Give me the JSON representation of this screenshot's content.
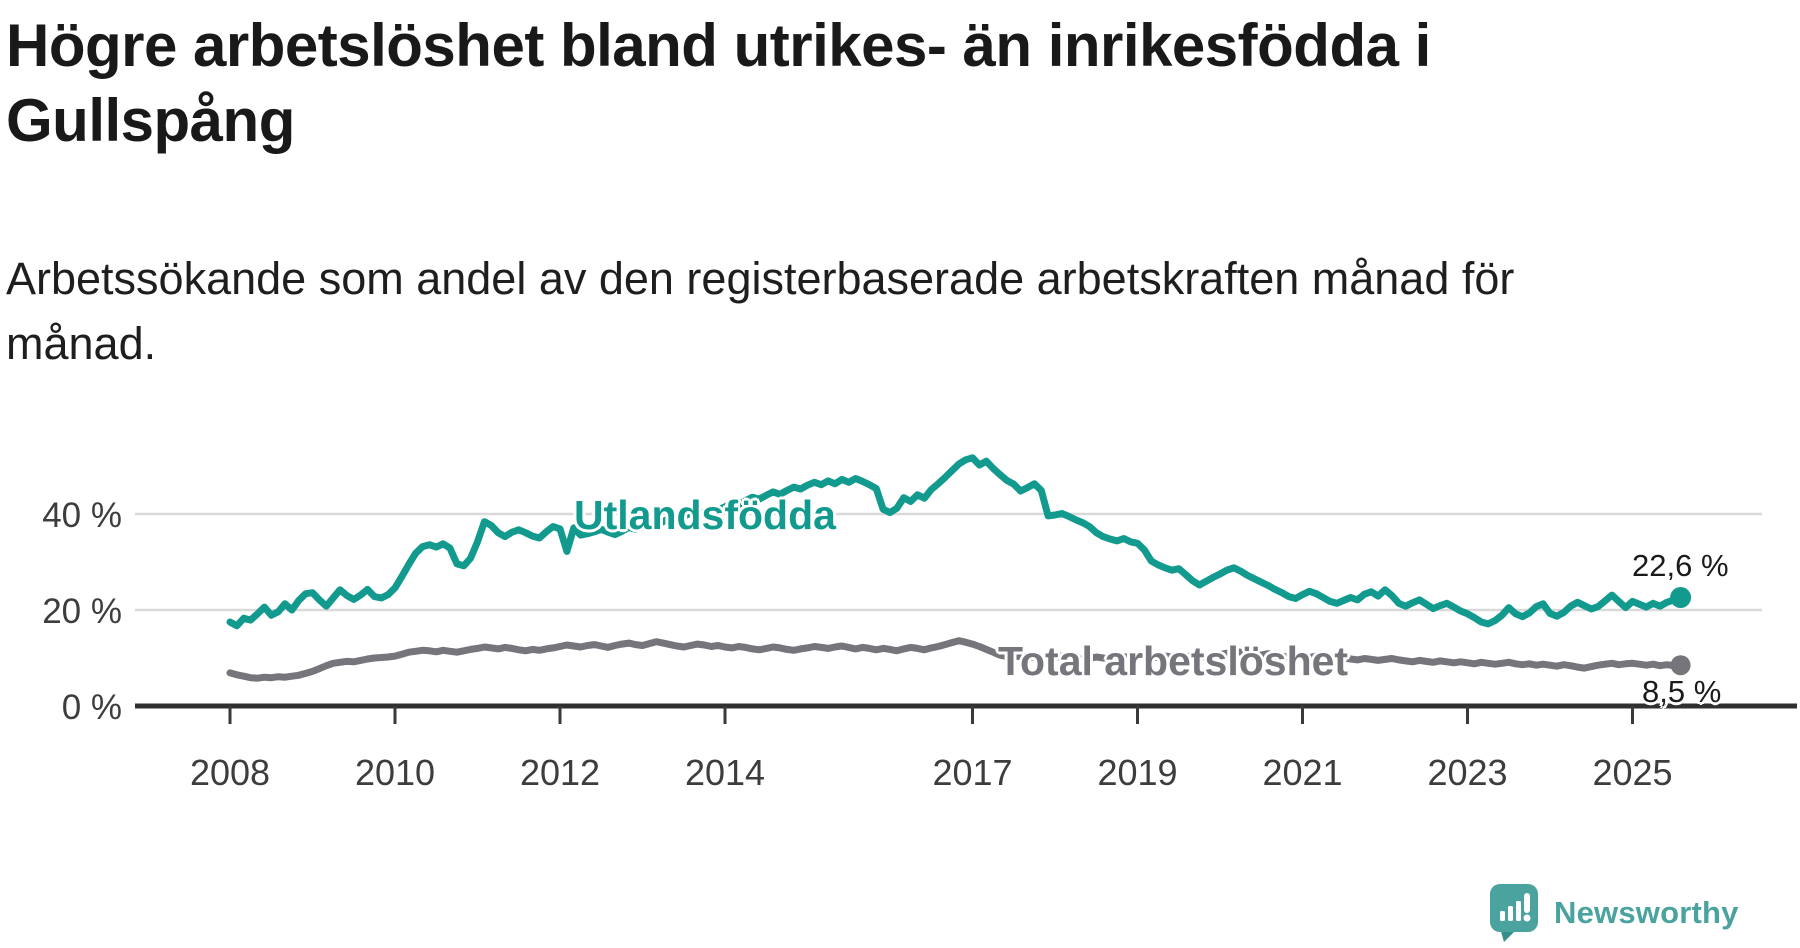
{
  "header": {
    "title": "Högre arbetslöshet bland utrikes- än inrikesfödda i Gullspång",
    "subtitle": "Arbetssökande som andel av den registerbaserade arbetskraften månad för månad."
  },
  "footer": {
    "brand": "Newsworthy",
    "brand_color": "#4AA39E"
  },
  "chart_data": {
    "type": "line",
    "title": "Högre arbetslöshet bland utrikes- än inrikesfödda i Gullspång",
    "xlabel": "",
    "ylabel": "Arbetssökande som andel av den registerbaserade arbetskraften",
    "x_start": "2008-01",
    "x_end": "2025-08",
    "points_per_year": 12,
    "ylim": [
      0,
      56
    ],
    "grid": "horizontal",
    "gridline_color": "#d9d9d9",
    "axis_color": "#2f2f2f",
    "y_ticks": [
      {
        "value": 40,
        "label": "40 %"
      },
      {
        "value": 20,
        "label": "20 %"
      },
      {
        "value": 0,
        "label": "0 %"
      }
    ],
    "x_ticks": [
      {
        "year": 2008,
        "label": "2008"
      },
      {
        "year": 2010,
        "label": "2010"
      },
      {
        "year": 2012,
        "label": "2012"
      },
      {
        "year": 2014,
        "label": "2014"
      },
      {
        "year": 2017,
        "label": "2017"
      },
      {
        "year": 2019,
        "label": "2019"
      },
      {
        "year": 2021,
        "label": "2021"
      },
      {
        "year": 2023,
        "label": "2023"
      },
      {
        "year": 2025,
        "label": "2025"
      }
    ],
    "series": [
      {
        "id": "utlandsfodda",
        "name": "Utlandsfödda",
        "color": "#139A8E",
        "end_label": "22,6 %",
        "end_value": 22.6,
        "values": [
          17.5,
          16.7,
          18.3,
          17.9,
          19.2,
          20.6,
          18.9,
          19.6,
          21.3,
          20.0,
          22.0,
          23.4,
          23.6,
          22.1,
          20.8,
          22.5,
          24.2,
          23.0,
          22.2,
          23.1,
          24.3,
          22.8,
          22.5,
          23.2,
          24.6,
          27.0,
          29.5,
          31.8,
          33.2,
          33.6,
          33.1,
          33.8,
          32.9,
          29.6,
          29.2,
          30.8,
          34.2,
          38.4,
          37.6,
          36.1,
          35.3,
          36.2,
          36.7,
          36.1,
          35.4,
          35.0,
          36.3,
          37.4,
          36.9,
          32.2,
          37.1,
          35.6,
          35.9,
          36.3,
          36.8,
          36.2,
          35.7,
          36.4,
          37.2,
          36.8,
          37.3,
          38.1,
          37.6,
          38.4,
          39.2,
          38.7,
          39.5,
          40.2,
          39.8,
          40.5,
          41.2,
          40.8,
          41.5,
          42.3,
          41.9,
          42.8,
          43.5,
          43.1,
          43.9,
          44.6,
          44.1,
          44.9,
          45.6,
          45.2,
          46.0,
          46.6,
          46.1,
          46.9,
          46.3,
          47.2,
          46.6,
          47.4,
          46.8,
          46.1,
          45.3,
          41.0,
          40.3,
          41.2,
          43.4,
          42.6,
          44.0,
          43.3,
          45.1,
          46.3,
          47.6,
          49.0,
          50.4,
          51.3,
          51.7,
          50.2,
          51.0,
          49.5,
          48.2,
          47.0,
          46.2,
          44.8,
          45.5,
          46.3,
          44.9,
          39.6,
          39.8,
          40.1,
          39.5,
          38.8,
          38.2,
          37.4,
          36.1,
          35.3,
          34.8,
          34.4,
          34.9,
          34.2,
          33.9,
          32.5,
          30.2,
          29.4,
          28.8,
          28.3,
          28.6,
          27.4,
          26.1,
          25.2,
          26.0,
          26.8,
          27.5,
          28.3,
          28.8,
          28.1,
          27.2,
          26.5,
          25.8,
          25.1,
          24.3,
          23.6,
          22.8,
          22.4,
          23.2,
          23.9,
          23.4,
          22.6,
          21.8,
          21.4,
          22.0,
          22.6,
          22.1,
          23.3,
          23.8,
          22.9,
          24.2,
          23.0,
          21.4,
          20.8,
          21.5,
          22.1,
          21.2,
          20.3,
          20.9,
          21.4,
          20.6,
          19.8,
          19.2,
          18.4,
          17.5,
          17.1,
          17.8,
          18.9,
          20.5,
          19.2,
          18.6,
          19.4,
          20.7,
          21.3,
          19.3,
          18.7,
          19.5,
          20.8,
          21.6,
          20.9,
          20.2,
          20.7,
          21.9,
          23.1,
          21.8,
          20.5,
          21.8,
          21.2,
          20.6,
          21.4,
          20.8,
          21.6,
          22.1,
          22.6
        ]
      },
      {
        "id": "total",
        "name": "Total arbetslöshet",
        "color": "#75757B",
        "end_label": "8,5 %",
        "end_value": 8.5,
        "values": [
          6.9,
          6.5,
          6.2,
          5.9,
          5.8,
          6.0,
          5.9,
          6.1,
          6.0,
          6.2,
          6.4,
          6.8,
          7.2,
          7.8,
          8.4,
          8.9,
          9.1,
          9.3,
          9.2,
          9.5,
          9.8,
          10.0,
          10.1,
          10.2,
          10.4,
          10.8,
          11.2,
          11.4,
          11.6,
          11.5,
          11.3,
          11.6,
          11.4,
          11.2,
          11.5,
          11.8,
          12.0,
          12.3,
          12.1,
          11.9,
          12.2,
          12.0,
          11.7,
          11.5,
          11.8,
          11.6,
          11.9,
          12.1,
          12.4,
          12.7,
          12.5,
          12.3,
          12.6,
          12.8,
          12.5,
          12.2,
          12.6,
          12.9,
          13.1,
          12.8,
          12.6,
          13.0,
          13.4,
          13.1,
          12.8,
          12.5,
          12.3,
          12.6,
          12.9,
          12.7,
          12.4,
          12.6,
          12.3,
          12.1,
          12.4,
          12.2,
          11.9,
          11.7,
          12.0,
          12.3,
          12.1,
          11.8,
          11.6,
          11.9,
          12.1,
          12.4,
          12.2,
          12.0,
          12.3,
          12.5,
          12.2,
          11.9,
          12.2,
          12.0,
          11.7,
          12.0,
          11.8,
          11.5,
          11.9,
          12.2,
          12.0,
          11.7,
          12.1,
          12.4,
          12.8,
          13.2,
          13.6,
          13.3,
          12.9,
          12.4,
          11.8,
          11.2,
          10.6,
          10.3,
          10.5,
          10.2,
          10.0,
          10.3,
          10.1,
          9.9,
          10.1,
          10.4,
          10.2,
          9.9,
          9.7,
          9.9,
          10.2,
          10.0,
          9.8,
          10.0,
          10.3,
          10.1,
          10.4,
          10.6,
          10.3,
          10.1,
          10.4,
          10.2,
          10.0,
          10.2,
          10.5,
          10.3,
          10.1,
          10.4,
          10.7,
          11.0,
          11.4,
          11.2,
          11.0,
          10.8,
          10.6,
          10.9,
          10.7,
          10.4,
          10.2,
          10.5,
          10.3,
          10.1,
          10.4,
          10.2,
          9.9,
          9.7,
          10.0,
          9.8,
          9.6,
          9.9,
          9.7,
          9.5,
          9.7,
          9.9,
          9.6,
          9.4,
          9.2,
          9.5,
          9.3,
          9.1,
          9.4,
          9.2,
          9.0,
          9.2,
          9.0,
          8.8,
          9.1,
          8.9,
          8.7,
          8.9,
          9.1,
          8.8,
          8.6,
          8.8,
          8.5,
          8.7,
          8.5,
          8.3,
          8.6,
          8.4,
          8.1,
          7.9,
          8.2,
          8.5,
          8.7,
          8.9,
          8.6,
          8.8,
          8.9,
          8.7,
          8.5,
          8.7,
          8.4,
          8.6,
          8.4,
          8.5
        ]
      }
    ]
  }
}
